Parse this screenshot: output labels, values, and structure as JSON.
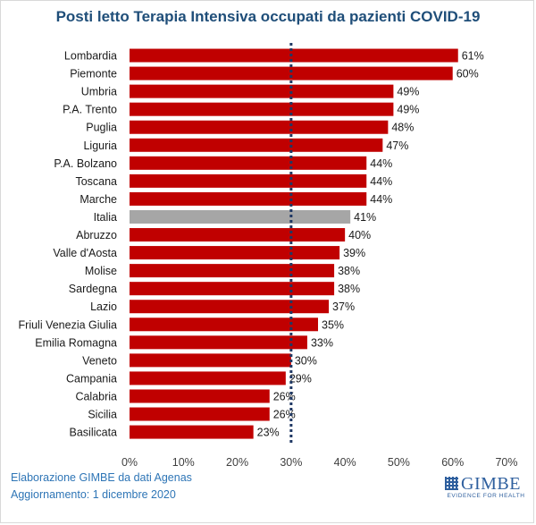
{
  "title": "Posti letto Terapia  Intensiva occupati da pazienti COVID-19",
  "footer": {
    "line1": "Elaborazione GIMBE da dati Agenas",
    "line2": "Aggiornamento: 1 dicembre 2020"
  },
  "logo": {
    "name": "GIMBE",
    "tagline": "EVIDENCE FOR HEALTH"
  },
  "colors": {
    "bar": "#c00000",
    "highlight": "#a6a6a6",
    "threshold": "#1f3864",
    "title": "#1f4e79"
  },
  "chart_data": {
    "type": "bar",
    "orientation": "horizontal",
    "title": "Posti letto Terapia  Intensiva occupati da pazienti COVID-19",
    "categories": [
      "Lombardia",
      "Piemonte",
      "Umbria",
      "P.A. Trento",
      "Puglia",
      "Liguria",
      "P.A. Bolzano",
      "Toscana",
      "Marche",
      "Italia",
      "Abruzzo",
      "Valle d'Aosta",
      "Molise",
      "Sardegna",
      "Lazio",
      "Friuli Venezia Giulia",
      "Emilia Romagna",
      "Veneto",
      "Campania",
      "Calabria",
      "Sicilia",
      "Basilicata"
    ],
    "values": [
      61,
      60,
      49,
      49,
      48,
      47,
      44,
      44,
      44,
      41,
      40,
      39,
      38,
      38,
      37,
      35,
      33,
      30,
      29,
      26,
      26,
      23
    ],
    "value_labels": [
      "61%",
      "60%",
      "49%",
      "49%",
      "48%",
      "47%",
      "44%",
      "44%",
      "44%",
      "41%",
      "40%",
      "39%",
      "38%",
      "38%",
      "37%",
      "35%",
      "33%",
      "30%",
      "29%",
      "26%",
      "26%",
      "23%"
    ],
    "highlight_category": "Italia",
    "xlim": [
      0,
      70
    ],
    "x_ticks": [
      0,
      10,
      20,
      30,
      40,
      50,
      60,
      70
    ],
    "x_tick_labels": [
      "0%",
      "10%",
      "20%",
      "30%",
      "40%",
      "50%",
      "60%",
      "70%"
    ],
    "threshold": 30,
    "grid": true
  }
}
